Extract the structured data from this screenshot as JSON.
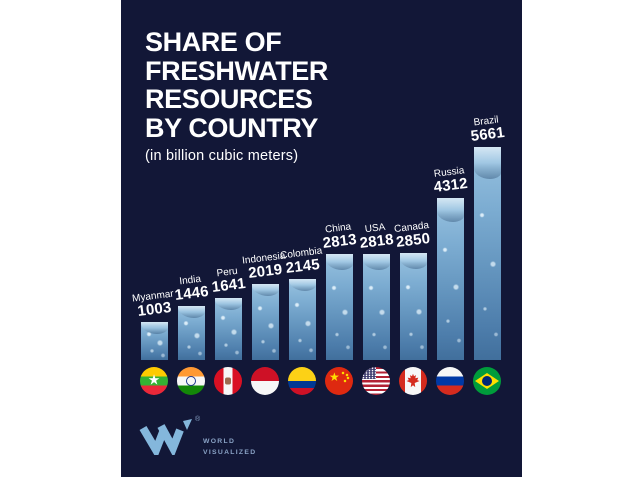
{
  "header": {
    "title_lines": [
      "SHARE OF",
      "FRESHWATER",
      "RESOURCES",
      "BY COUNTRY"
    ],
    "subtitle": "(in billion cubic meters)"
  },
  "chart_data": {
    "type": "bar",
    "title": "Share of Freshwater Resources by Country",
    "subtitle": "(in billion cubic meters)",
    "orientation": "vertical",
    "sort_order": "ascending",
    "legend": "none",
    "grid": "off",
    "value_labels": "above bars, country name over bold value, slightly rotated",
    "categories": [
      "Myanmar",
      "India",
      "Peru",
      "Indonesia",
      "Colombia",
      "China",
      "USA",
      "Canada",
      "Russia",
      "Brazil"
    ],
    "values": [
      1003,
      1446,
      1641,
      2019,
      2145,
      2813,
      2818,
      2850,
      4312,
      5661
    ],
    "unit": "billion cubic meters",
    "ylim": [
      0,
      5661
    ],
    "flags": [
      "myanmar",
      "india",
      "peru",
      "indonesia",
      "colombia",
      "china",
      "usa",
      "canada",
      "russia",
      "brazil"
    ],
    "bar_style": "water-photo-texture"
  },
  "footer": {
    "registered": "®",
    "brand_line1": "WORLD",
    "brand_line2": "VISUALIZED"
  },
  "icons": {
    "logo_mark": "world-visualized-w-mark",
    "flag_style": "circular country flags under each bar"
  },
  "colors": {
    "page_background": "#ffffff",
    "panel_background": "#121737",
    "text": "#ffffff",
    "water_light": "#9ec7e2",
    "water_dark": "#416f9c",
    "logo_blue": "#84b7dc"
  }
}
